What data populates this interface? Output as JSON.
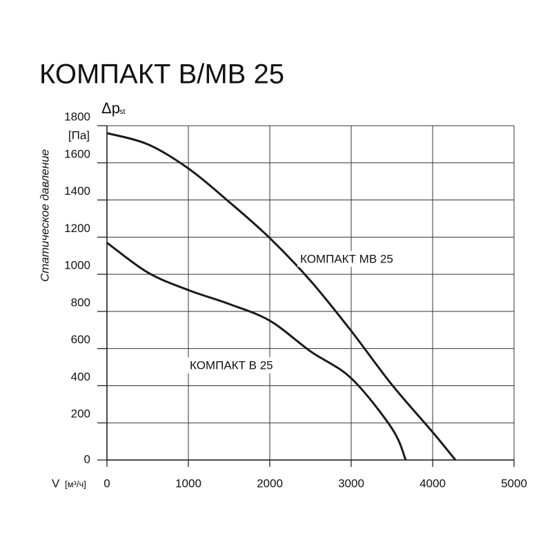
{
  "chart_data": {
    "type": "line",
    "title": "КОМПАКТ В/МВ 25",
    "x_label": "V",
    "x_unit": "[м³/ч]",
    "y_label": "Статическое давление",
    "y_symbol": "Δp",
    "y_symbol_sub": "st",
    "y_unit": "[Па]",
    "xlim": [
      0,
      5000
    ],
    "xticks": [
      0,
      1000,
      2000,
      3000,
      4000,
      5000
    ],
    "ylim": [
      0,
      1800
    ],
    "yticks": [
      0,
      200,
      400,
      600,
      800,
      1000,
      1200,
      1400,
      1600,
      1800
    ],
    "grid": true,
    "series": [
      {
        "name": "КОМПАКТ МВ 25",
        "color": "#1a1a1a",
        "x": [
          0,
          500,
          1000,
          1500,
          2000,
          2500,
          3000,
          3500,
          4000,
          4280
        ],
        "values": [
          1760,
          1700,
          1570,
          1390,
          1195,
          965,
          695,
          405,
          150,
          0
        ]
      },
      {
        "name": "КОМПАКТ В 25",
        "color": "#1a1a1a",
        "x": [
          0,
          500,
          1000,
          1500,
          2000,
          2500,
          3000,
          3500,
          3670
        ],
        "values": [
          1170,
          1010,
          915,
          840,
          750,
          585,
          440,
          170,
          0
        ]
      }
    ]
  }
}
